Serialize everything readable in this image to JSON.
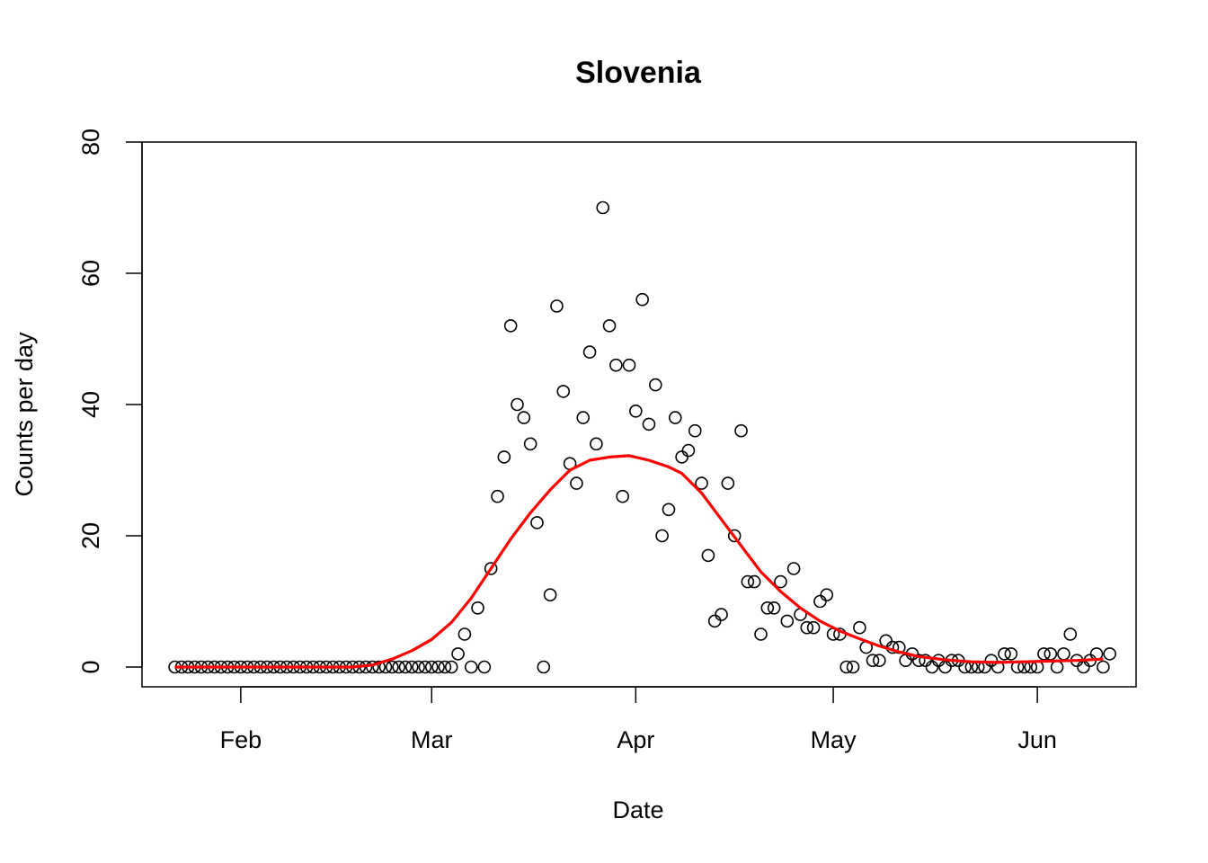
{
  "chart_data": {
    "type": "scatter",
    "title": "Slovenia",
    "xlabel": "Date",
    "ylabel": "Counts per day",
    "ylim": [
      0,
      80
    ],
    "xlim": [
      "2020-01-17",
      "2020-06-16"
    ],
    "y_ticks": [
      0,
      20,
      40,
      60,
      80
    ],
    "x_ticks": [
      {
        "date": "2020-02-01",
        "label": "Feb"
      },
      {
        "date": "2020-03-01",
        "label": "Mar"
      },
      {
        "date": "2020-04-01",
        "label": "Apr"
      },
      {
        "date": "2020-05-01",
        "label": "May"
      },
      {
        "date": "2020-06-01",
        "label": "Jun"
      }
    ],
    "grid": false,
    "legend": "none",
    "point_color": "#000000",
    "line_color": "#ff0000",
    "series": [
      {
        "kind": "points",
        "x_start": "2020-01-22",
        "values": [
          0,
          0,
          0,
          0,
          0,
          0,
          0,
          0,
          0,
          0,
          0,
          0,
          0,
          0,
          0,
          0,
          0,
          0,
          0,
          0,
          0,
          0,
          0,
          0,
          0,
          0,
          0,
          0,
          0,
          0,
          0,
          0,
          0,
          0,
          0,
          0,
          0,
          0,
          0,
          0,
          0,
          0,
          0,
          2,
          5,
          0,
          9,
          0,
          15,
          26,
          32,
          52,
          40,
          38,
          34,
          22,
          0,
          11,
          55,
          42,
          31,
          28,
          38,
          48,
          34,
          70,
          52,
          46,
          26,
          46,
          39,
          56,
          37,
          43,
          20,
          24,
          38,
          32,
          33,
          36,
          28,
          17,
          7,
          8,
          28,
          20,
          36,
          13,
          13,
          5,
          9,
          9,
          13,
          7,
          15,
          8,
          6,
          6,
          10,
          11,
          5,
          5,
          0,
          0,
          6,
          3,
          1,
          1,
          4,
          3,
          3,
          1,
          2,
          1,
          1,
          0,
          1,
          0,
          1,
          1,
          0,
          0,
          0,
          0,
          1,
          0,
          2,
          2,
          0,
          0,
          0,
          0,
          2,
          2,
          0,
          2,
          5,
          1,
          0,
          1,
          2,
          0,
          2
        ]
      },
      {
        "kind": "smooth",
        "points": [
          [
            "2020-01-22",
            0
          ],
          [
            "2020-02-01",
            0
          ],
          [
            "2020-02-10",
            0
          ],
          [
            "2020-02-18",
            0
          ],
          [
            "2020-02-21",
            0.3
          ],
          [
            "2020-02-24",
            1.2
          ],
          [
            "2020-02-27",
            2.5
          ],
          [
            "2020-03-01",
            4.2
          ],
          [
            "2020-03-04",
            6.8
          ],
          [
            "2020-03-07",
            10.5
          ],
          [
            "2020-03-10",
            15
          ],
          [
            "2020-03-13",
            19.5
          ],
          [
            "2020-03-16",
            23.5
          ],
          [
            "2020-03-19",
            27
          ],
          [
            "2020-03-22",
            30
          ],
          [
            "2020-03-25",
            31.5
          ],
          [
            "2020-03-28",
            32
          ],
          [
            "2020-03-31",
            32.2
          ],
          [
            "2020-04-03",
            31.5
          ],
          [
            "2020-04-06",
            30.5
          ],
          [
            "2020-04-08",
            29.5
          ],
          [
            "2020-04-11",
            26.5
          ],
          [
            "2020-04-14",
            22.5
          ],
          [
            "2020-04-17",
            18.5
          ],
          [
            "2020-04-20",
            14.5
          ],
          [
            "2020-04-23",
            11.5
          ],
          [
            "2020-04-26",
            9
          ],
          [
            "2020-04-29",
            7
          ],
          [
            "2020-05-02",
            5.5
          ],
          [
            "2020-05-05",
            4.3
          ],
          [
            "2020-05-08",
            3.2
          ],
          [
            "2020-05-11",
            2.3
          ],
          [
            "2020-05-14",
            1.6
          ],
          [
            "2020-05-18",
            1.1
          ],
          [
            "2020-05-22",
            0.8
          ],
          [
            "2020-05-26",
            0.7
          ],
          [
            "2020-05-30",
            0.8
          ],
          [
            "2020-06-03",
            0.9
          ],
          [
            "2020-06-07",
            1.0
          ],
          [
            "2020-06-11",
            1.2
          ]
        ]
      }
    ]
  }
}
